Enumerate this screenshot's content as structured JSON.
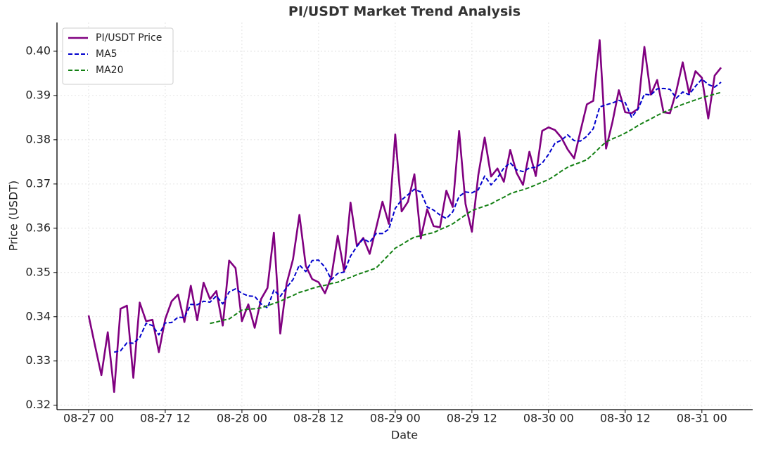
{
  "chart_data": {
    "type": "line",
    "title": "PI/USDT Market Trend Analysis",
    "x_label": "Date",
    "y_label": "Price (USDT)",
    "x": [
      "08-27 00",
      "08-27 01",
      "08-27 02",
      "08-27 03",
      "08-27 04",
      "08-27 05",
      "08-27 06",
      "08-27 07",
      "08-27 08",
      "08-27 09",
      "08-27 10",
      "08-27 11",
      "08-27 12",
      "08-27 13",
      "08-27 14",
      "08-27 15",
      "08-27 16",
      "08-27 17",
      "08-27 18",
      "08-27 19",
      "08-27 20",
      "08-27 21",
      "08-27 22",
      "08-27 23",
      "08-28 00",
      "08-28 01",
      "08-28 02",
      "08-28 03",
      "08-28 04",
      "08-28 05",
      "08-28 06",
      "08-28 07",
      "08-28 08",
      "08-28 09",
      "08-28 10",
      "08-28 11",
      "08-28 12",
      "08-28 13",
      "08-28 14",
      "08-28 15",
      "08-28 16",
      "08-28 17",
      "08-28 18",
      "08-28 19",
      "08-28 20",
      "08-28 21",
      "08-28 22",
      "08-28 23",
      "08-29 00",
      "08-29 01",
      "08-29 02",
      "08-29 03",
      "08-29 04",
      "08-29 05",
      "08-29 06",
      "08-29 07",
      "08-29 08",
      "08-29 09",
      "08-29 10",
      "08-29 11",
      "08-29 12",
      "08-29 13",
      "08-29 14",
      "08-29 15",
      "08-29 16",
      "08-29 17",
      "08-29 18",
      "08-29 19",
      "08-29 20",
      "08-29 21",
      "08-29 22",
      "08-29 23",
      "08-30 00",
      "08-30 01",
      "08-30 02",
      "08-30 03",
      "08-30 04",
      "08-30 05",
      "08-30 06",
      "08-30 07",
      "08-30 08",
      "08-30 09",
      "08-30 10",
      "08-30 11",
      "08-30 12",
      "08-30 13",
      "08-30 14",
      "08-30 15",
      "08-30 16",
      "08-30 17",
      "08-30 18",
      "08-30 19",
      "08-30 20",
      "08-30 21",
      "08-30 22",
      "08-30 23",
      "08-31 00",
      "08-31 01",
      "08-31 02",
      "08-31 03"
    ],
    "xticks": [
      "08-27 00",
      "08-27 12",
      "08-28 00",
      "08-28 12",
      "08-29 00",
      "08-29 12",
      "08-30 00",
      "08-30 12",
      "08-31 00"
    ],
    "ylim": [
      0.319,
      0.4065
    ],
    "yticks": [
      0.32,
      0.33,
      0.34,
      0.35,
      0.36,
      0.37,
      0.38,
      0.39,
      {
        "value": 0.4,
        "label": "0.40"
      }
    ],
    "grid": true,
    "legend": "upper left",
    "series": [
      {
        "name": "PI/USDT Price",
        "color": "#800080",
        "style": "solid",
        "values": [
          0.3403,
          0.3335,
          0.3268,
          0.3365,
          0.323,
          0.3418,
          0.3425,
          0.3262,
          0.3432,
          0.339,
          0.3393,
          0.332,
          0.3395,
          0.3435,
          0.345,
          0.3388,
          0.347,
          0.3392,
          0.3477,
          0.344,
          0.3458,
          0.338,
          0.3527,
          0.351,
          0.339,
          0.3428,
          0.3375,
          0.344,
          0.3465,
          0.359,
          0.3362,
          0.3475,
          0.353,
          0.363,
          0.3515,
          0.3485,
          0.3478,
          0.3453,
          0.349,
          0.3583,
          0.3503,
          0.3658,
          0.356,
          0.3578,
          0.3542,
          0.36,
          0.366,
          0.361,
          0.3812,
          0.3638,
          0.366,
          0.3722,
          0.3577,
          0.3643,
          0.3605,
          0.3602,
          0.3685,
          0.3648,
          0.382,
          0.3655,
          0.3592,
          0.372,
          0.3805,
          0.3717,
          0.3735,
          0.3705,
          0.3777,
          0.3725,
          0.3698,
          0.3773,
          0.3718,
          0.382,
          0.3828,
          0.3822,
          0.3805,
          0.3778,
          0.3758,
          0.382,
          0.388,
          0.3888,
          0.4025,
          0.378,
          0.384,
          0.3912,
          0.3862,
          0.386,
          0.387,
          0.401,
          0.3902,
          0.3935,
          0.3862,
          0.386,
          0.391,
          0.3975,
          0.3905,
          0.3955,
          0.394,
          0.3848,
          0.3945,
          0.3963
        ]
      },
      {
        "name": "MA5",
        "color": "#0000cd",
        "style": "dashed",
        "values": [
          null,
          null,
          null,
          null,
          0.332,
          0.3323,
          0.3341,
          0.334,
          0.3353,
          0.3385,
          0.338,
          0.3359,
          0.3386,
          0.3387,
          0.3399,
          0.3398,
          0.3428,
          0.3427,
          0.3435,
          0.3433,
          0.3447,
          0.3429,
          0.3456,
          0.3463,
          0.3453,
          0.3447,
          0.3446,
          0.3429,
          0.342,
          0.346,
          0.3446,
          0.3466,
          0.3484,
          0.3517,
          0.3502,
          0.3527,
          0.3528,
          0.3512,
          0.3484,
          0.3498,
          0.3501,
          0.3537,
          0.3559,
          0.3576,
          0.3568,
          0.3588,
          0.3588,
          0.3598,
          0.3645,
          0.3664,
          0.3676,
          0.3688,
          0.3682,
          0.3648,
          0.3641,
          0.363,
          0.3622,
          0.3637,
          0.3672,
          0.3682,
          0.368,
          0.3687,
          0.3718,
          0.3698,
          0.3714,
          0.3736,
          0.3748,
          0.3732,
          0.3728,
          0.3736,
          0.3738,
          0.3747,
          0.3767,
          0.3792,
          0.3799,
          0.3811,
          0.3798,
          0.3797,
          0.3808,
          0.3825,
          0.3874,
          0.3879,
          0.3883,
          0.3889,
          0.3884,
          0.3851,
          0.3869,
          0.3903,
          0.3901,
          0.3915,
          0.3916,
          0.3914,
          0.3894,
          0.3908,
          0.3902,
          0.3921,
          0.3937,
          0.3925,
          0.3919,
          0.393
        ]
      },
      {
        "name": "MA20",
        "color": "#138013",
        "style": "dashed",
        "values": [
          null,
          null,
          null,
          null,
          null,
          null,
          null,
          null,
          null,
          null,
          null,
          null,
          null,
          null,
          null,
          null,
          null,
          null,
          null,
          0.3385,
          0.3388,
          0.3392,
          0.3395,
          0.3405,
          0.3415,
          0.3417,
          0.3418,
          0.342,
          0.3425,
          0.343,
          0.3435,
          0.3442,
          0.3448,
          0.3455,
          0.3459,
          0.3464,
          0.3468,
          0.3471,
          0.3475,
          0.3478,
          0.3484,
          0.3489,
          0.3495,
          0.35,
          0.3505,
          0.351,
          0.3525,
          0.354,
          0.3555,
          0.3563,
          0.3572,
          0.358,
          0.3583,
          0.3587,
          0.359,
          0.3597,
          0.3603,
          0.361,
          0.362,
          0.363,
          0.364,
          0.3645,
          0.365,
          0.3655,
          0.3663,
          0.367,
          0.3678,
          0.3683,
          0.3687,
          0.3692,
          0.3698,
          0.3704,
          0.371,
          0.3719,
          0.3729,
          0.3738,
          0.3744,
          0.3749,
          0.3755,
          0.3768,
          0.3782,
          0.3795,
          0.3802,
          0.3808,
          0.3815,
          0.3823,
          0.3832,
          0.384,
          0.3847,
          0.3855,
          0.3862,
          0.3868,
          0.3874,
          0.388,
          0.3885,
          0.389,
          0.3895,
          0.3899,
          0.3903,
          0.3907
        ]
      }
    ]
  }
}
